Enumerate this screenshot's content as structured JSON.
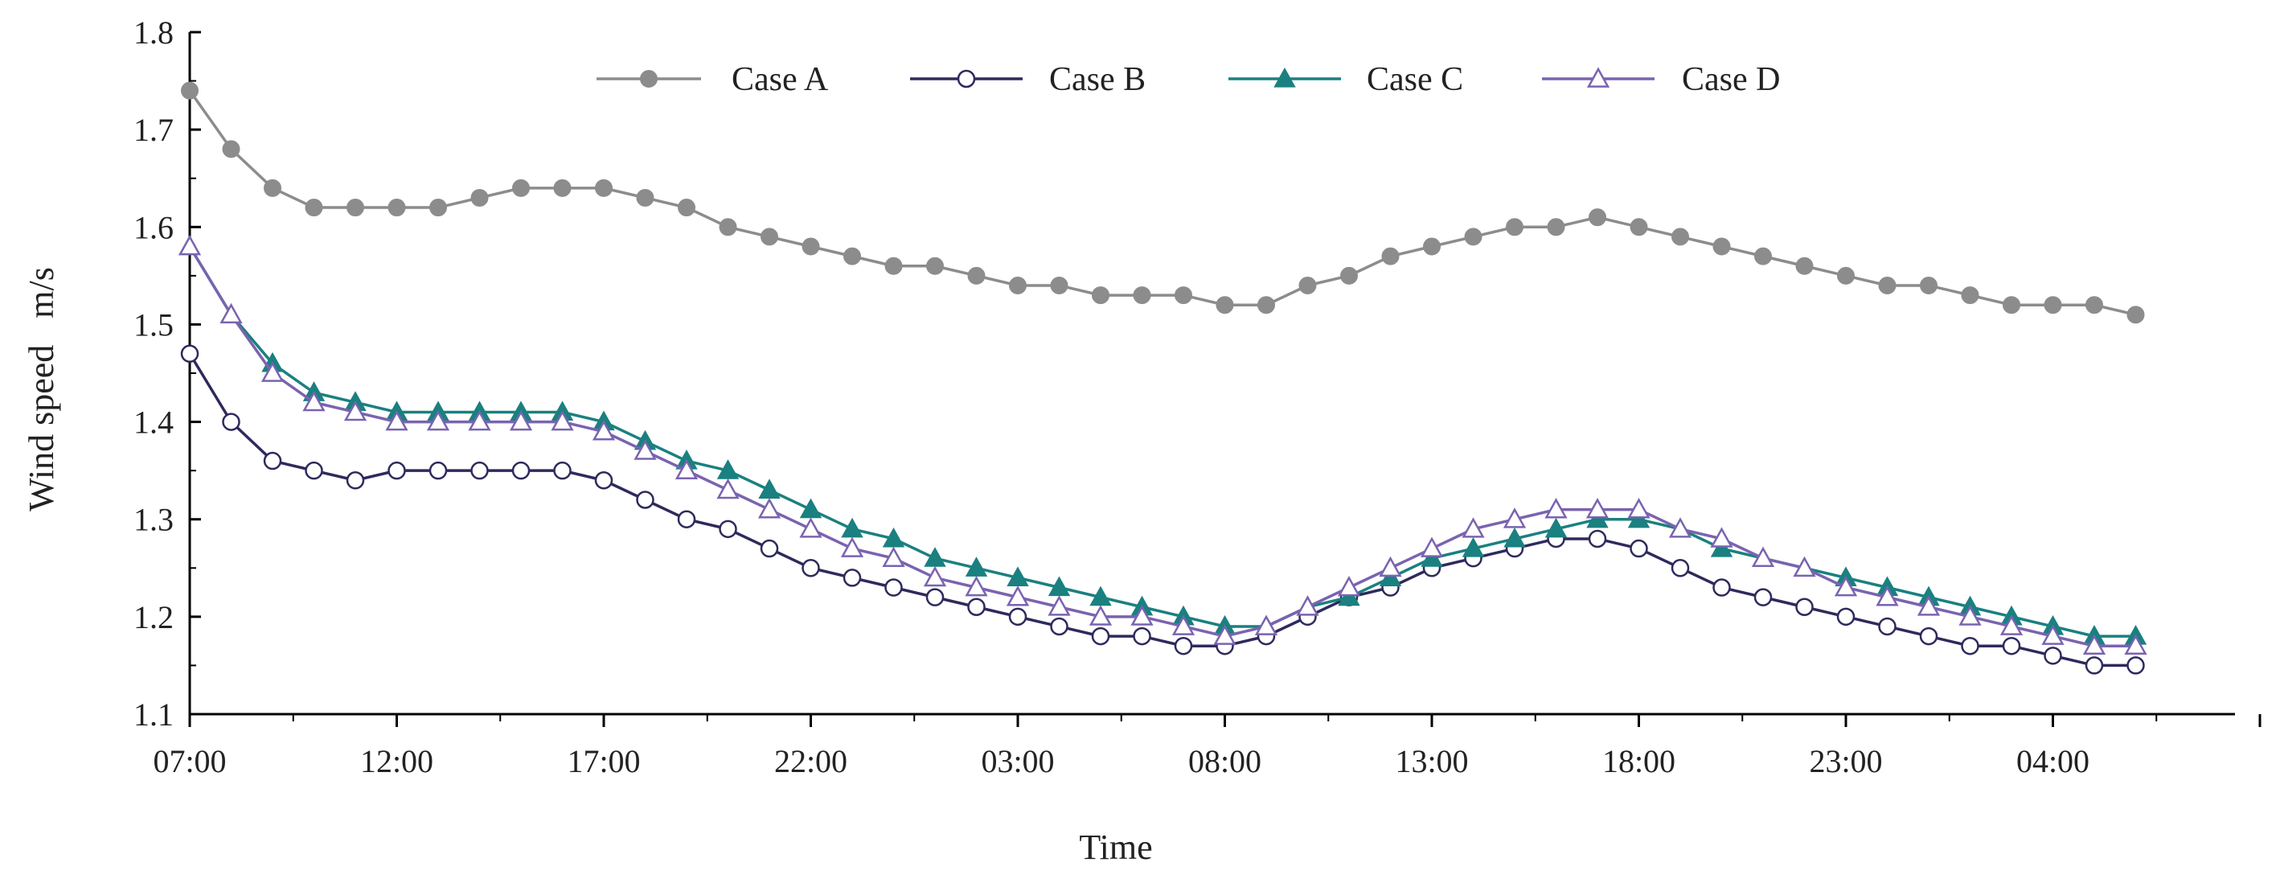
{
  "chart_data": {
    "type": "line",
    "title": "",
    "xlabel": "Time",
    "ylabel": "Wind speed   m/s",
    "ylim": [
      1.1,
      1.8
    ],
    "yticks": [
      "1.1",
      "1.2",
      "1.3",
      "1.4",
      "1.5",
      "1.6",
      "1.7",
      "1.8"
    ],
    "x_tick_labels": [
      "07:00",
      "12:00",
      "17:00",
      "22:00",
      "03:00",
      "08:00",
      "13:00",
      "18:00",
      "23:00",
      "04:00"
    ],
    "x_tick_hours": [
      0,
      5,
      10,
      15,
      20,
      25,
      30,
      35,
      40,
      45
    ],
    "x_hours_start": 0,
    "x_hours_end": 47,
    "x_axis_max_hours": 50,
    "legend_position": "top",
    "colors": {
      "case_a": "#8c8c8c",
      "case_b": "#2e2a5c",
      "case_c": "#1a8080",
      "case_d": "#7a63b0"
    },
    "series": [
      {
        "name": "Case A",
        "marker": "filled-circle",
        "values": [
          1.74,
          1.68,
          1.64,
          1.62,
          1.62,
          1.62,
          1.62,
          1.63,
          1.64,
          1.64,
          1.64,
          1.63,
          1.62,
          1.6,
          1.59,
          1.58,
          1.57,
          1.56,
          1.56,
          1.55,
          1.54,
          1.54,
          1.53,
          1.53,
          1.53,
          1.52,
          1.52,
          1.54,
          1.55,
          1.57,
          1.58,
          1.59,
          1.6,
          1.6,
          1.61,
          1.6,
          1.59,
          1.58,
          1.57,
          1.56,
          1.55,
          1.54,
          1.54,
          1.53,
          1.52,
          1.52,
          1.52,
          1.51
        ]
      },
      {
        "name": "Case B",
        "marker": "open-circle",
        "values": [
          1.47,
          1.4,
          1.36,
          1.35,
          1.34,
          1.35,
          1.35,
          1.35,
          1.35,
          1.35,
          1.34,
          1.32,
          1.3,
          1.29,
          1.27,
          1.25,
          1.24,
          1.23,
          1.22,
          1.21,
          1.2,
          1.19,
          1.18,
          1.18,
          1.17,
          1.17,
          1.18,
          1.2,
          1.22,
          1.23,
          1.25,
          1.26,
          1.27,
          1.28,
          1.28,
          1.27,
          1.25,
          1.23,
          1.22,
          1.21,
          1.2,
          1.19,
          1.18,
          1.17,
          1.17,
          1.16,
          1.15,
          1.15
        ]
      },
      {
        "name": "Case C",
        "marker": "filled-triangle",
        "values": [
          1.58,
          1.51,
          1.46,
          1.43,
          1.42,
          1.41,
          1.41,
          1.41,
          1.41,
          1.41,
          1.4,
          1.38,
          1.36,
          1.35,
          1.33,
          1.31,
          1.29,
          1.28,
          1.26,
          1.25,
          1.24,
          1.23,
          1.22,
          1.21,
          1.2,
          1.19,
          1.19,
          1.21,
          1.22,
          1.24,
          1.26,
          1.27,
          1.28,
          1.29,
          1.3,
          1.3,
          1.29,
          1.27,
          1.26,
          1.25,
          1.24,
          1.23,
          1.22,
          1.21,
          1.2,
          1.19,
          1.18,
          1.18
        ]
      },
      {
        "name": "Case D",
        "marker": "open-triangle",
        "values": [
          1.58,
          1.51,
          1.45,
          1.42,
          1.41,
          1.4,
          1.4,
          1.4,
          1.4,
          1.4,
          1.39,
          1.37,
          1.35,
          1.33,
          1.31,
          1.29,
          1.27,
          1.26,
          1.24,
          1.23,
          1.22,
          1.21,
          1.2,
          1.2,
          1.19,
          1.18,
          1.19,
          1.21,
          1.23,
          1.25,
          1.27,
          1.29,
          1.3,
          1.31,
          1.31,
          1.31,
          1.29,
          1.28,
          1.26,
          1.25,
          1.23,
          1.22,
          1.21,
          1.2,
          1.19,
          1.18,
          1.17,
          1.17
        ]
      }
    ]
  }
}
